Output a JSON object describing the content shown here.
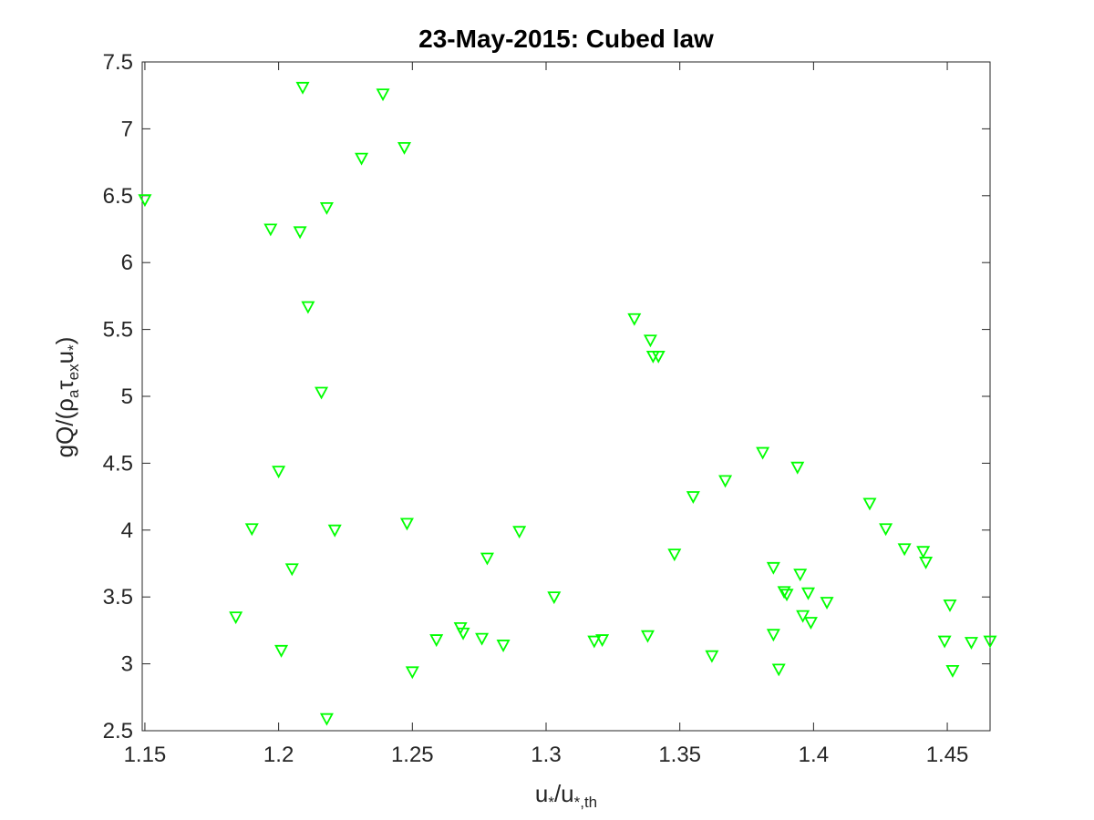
{
  "chart_data": {
    "type": "scatter",
    "title": "23-May-2015: Cubed law",
    "xlabel": {
      "main": "u",
      "sub1": "*",
      "mid": "/u",
      "sub2": "*,th"
    },
    "ylabel": {
      "pre": "gQ/(",
      "rho": "ρ",
      "rho_sub": "a",
      "tau": "τ",
      "tau_sub": "ex",
      "u": "u",
      "u_sub": "*",
      "post": ")"
    },
    "xlim": [
      1.149,
      1.466
    ],
    "ylim": [
      2.5,
      7.5
    ],
    "xticks": [
      "1.15",
      "1.2",
      "1.25",
      "1.3",
      "1.35",
      "1.4",
      "1.45"
    ],
    "yticks": [
      "2.5",
      "3",
      "3.5",
      "4",
      "4.5",
      "5",
      "5.5",
      "6",
      "6.5",
      "7",
      "7.5"
    ],
    "marker": "triangle-down",
    "marker_color": "#00ff00",
    "grid": false,
    "points": [
      [
        1.15,
        6.47
      ],
      [
        1.184,
        3.35
      ],
      [
        1.19,
        4.01
      ],
      [
        1.197,
        6.25
      ],
      [
        1.2,
        4.44
      ],
      [
        1.201,
        3.1
      ],
      [
        1.205,
        3.71
      ],
      [
        1.208,
        6.23
      ],
      [
        1.209,
        7.31
      ],
      [
        1.211,
        5.67
      ],
      [
        1.216,
        5.03
      ],
      [
        1.218,
        6.41
      ],
      [
        1.218,
        2.59
      ],
      [
        1.221,
        4.0
      ],
      [
        1.231,
        6.78
      ],
      [
        1.239,
        7.26
      ],
      [
        1.247,
        6.86
      ],
      [
        1.248,
        4.05
      ],
      [
        1.25,
        2.94
      ],
      [
        1.259,
        3.18
      ],
      [
        1.268,
        3.27
      ],
      [
        1.269,
        3.23
      ],
      [
        1.276,
        3.19
      ],
      [
        1.278,
        3.79
      ],
      [
        1.284,
        3.14
      ],
      [
        1.29,
        3.99
      ],
      [
        1.303,
        3.5
      ],
      [
        1.318,
        3.17
      ],
      [
        1.321,
        3.18
      ],
      [
        1.333,
        5.58
      ],
      [
        1.338,
        3.21
      ],
      [
        1.339,
        5.42
      ],
      [
        1.34,
        5.3
      ],
      [
        1.342,
        5.3
      ],
      [
        1.348,
        3.82
      ],
      [
        1.355,
        4.25
      ],
      [
        1.362,
        3.06
      ],
      [
        1.367,
        4.37
      ],
      [
        1.381,
        4.58
      ],
      [
        1.385,
        3.72
      ],
      [
        1.385,
        3.22
      ],
      [
        1.387,
        2.96
      ],
      [
        1.389,
        3.54
      ],
      [
        1.39,
        3.52
      ],
      [
        1.394,
        4.47
      ],
      [
        1.395,
        3.67
      ],
      [
        1.396,
        3.36
      ],
      [
        1.398,
        3.53
      ],
      [
        1.399,
        3.31
      ],
      [
        1.405,
        3.46
      ],
      [
        1.421,
        4.2
      ],
      [
        1.427,
        4.01
      ],
      [
        1.434,
        3.86
      ],
      [
        1.441,
        3.84
      ],
      [
        1.442,
        3.76
      ],
      [
        1.449,
        3.17
      ],
      [
        1.451,
        3.44
      ],
      [
        1.452,
        2.95
      ],
      [
        1.459,
        3.16
      ],
      [
        1.466,
        3.17
      ]
    ]
  }
}
